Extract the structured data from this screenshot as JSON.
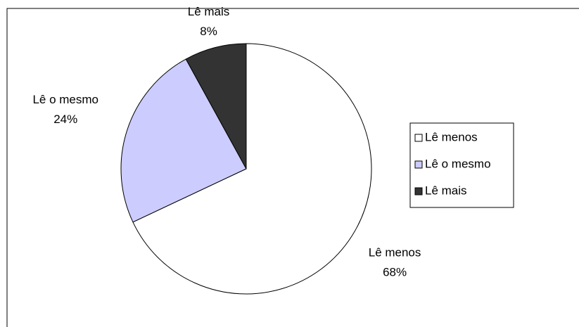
{
  "chart_data": {
    "type": "pie",
    "categories": [
      "Lê menos",
      "Lê o mesmo",
      "Lê mais"
    ],
    "values": [
      68,
      24,
      8
    ],
    "value_labels": [
      "68%",
      "24%",
      "8%"
    ],
    "colors": [
      "#ffffff",
      "#ccccff",
      "#333333"
    ],
    "legend": "right"
  }
}
